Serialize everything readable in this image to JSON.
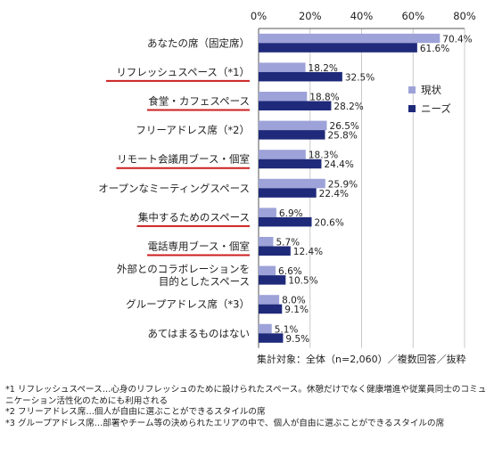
{
  "chart_data": {
    "type": "bar",
    "orientation": "horizontal",
    "xlim": [
      0,
      80
    ],
    "ticks": [
      "0%",
      "20%",
      "40%",
      "60%",
      "80%"
    ],
    "tick_values": [
      0,
      20,
      40,
      60,
      80
    ],
    "grid": true,
    "legend_position": "right",
    "categories": [
      {
        "label": "あなたの席（固定席）",
        "underline": false
      },
      {
        "label": "リフレッシュスペース（*1）",
        "underline": true
      },
      {
        "label": "食堂・カフェスペース",
        "underline": true
      },
      {
        "label": "フリーアドレス席（*2）",
        "underline": false
      },
      {
        "label": "リモート会議用ブース・個室",
        "underline": true
      },
      {
        "label": "オープンなミーティングスペース",
        "underline": false
      },
      {
        "label": "集中するためのスペース",
        "underline": true
      },
      {
        "label": "電話専用ブース・個室",
        "underline": true
      },
      {
        "label": "外部とのコラボレーションを\n目的としたスペース",
        "underline": false
      },
      {
        "label": "グループアドレス席（*3）",
        "underline": false
      },
      {
        "label": "あてはまるものはない",
        "underline": false
      }
    ],
    "series": [
      {
        "name": "現状",
        "color": "#9da3d8",
        "values": [
          70.4,
          18.2,
          18.8,
          26.5,
          18.3,
          25.9,
          6.9,
          5.7,
          6.6,
          8.0,
          5.1
        ],
        "labels": [
          "70.4%",
          "18.2%",
          "18.8%",
          "26.5%",
          "18.3%",
          "25.9%",
          "6.9%",
          "5.7%",
          "6.6%",
          "8.0%",
          "5.1%"
        ]
      },
      {
        "name": "ニーズ",
        "color": "#1f2a7a",
        "values": [
          61.6,
          32.5,
          28.2,
          25.8,
          24.4,
          22.4,
          20.6,
          12.4,
          10.5,
          9.1,
          9.5
        ],
        "labels": [
          "61.6%",
          "32.5%",
          "28.2%",
          "25.8%",
          "24.4%",
          "22.4%",
          "20.6%",
          "12.4%",
          "10.5%",
          "9.1%",
          "9.5%"
        ]
      }
    ],
    "underline_color": "#cc1f1f"
  },
  "summary": "集計対象：全体（n=2,060）／複数回答／抜粋",
  "footnotes": [
    "*1 リフレッシュスペース…心身のリフレッシュのために設けられたスペース。休憩だけでなく健康増進や従業員同士のコミュニケーション活性化のためにも利用される",
    "*2 フリーアドレス席…個人が自由に選ぶことができるスタイルの席",
    "*3 グループアドレス席…部署やチーム等の決められたエリアの中で、個人が自由に選ぶことができるスタイルの席"
  ]
}
